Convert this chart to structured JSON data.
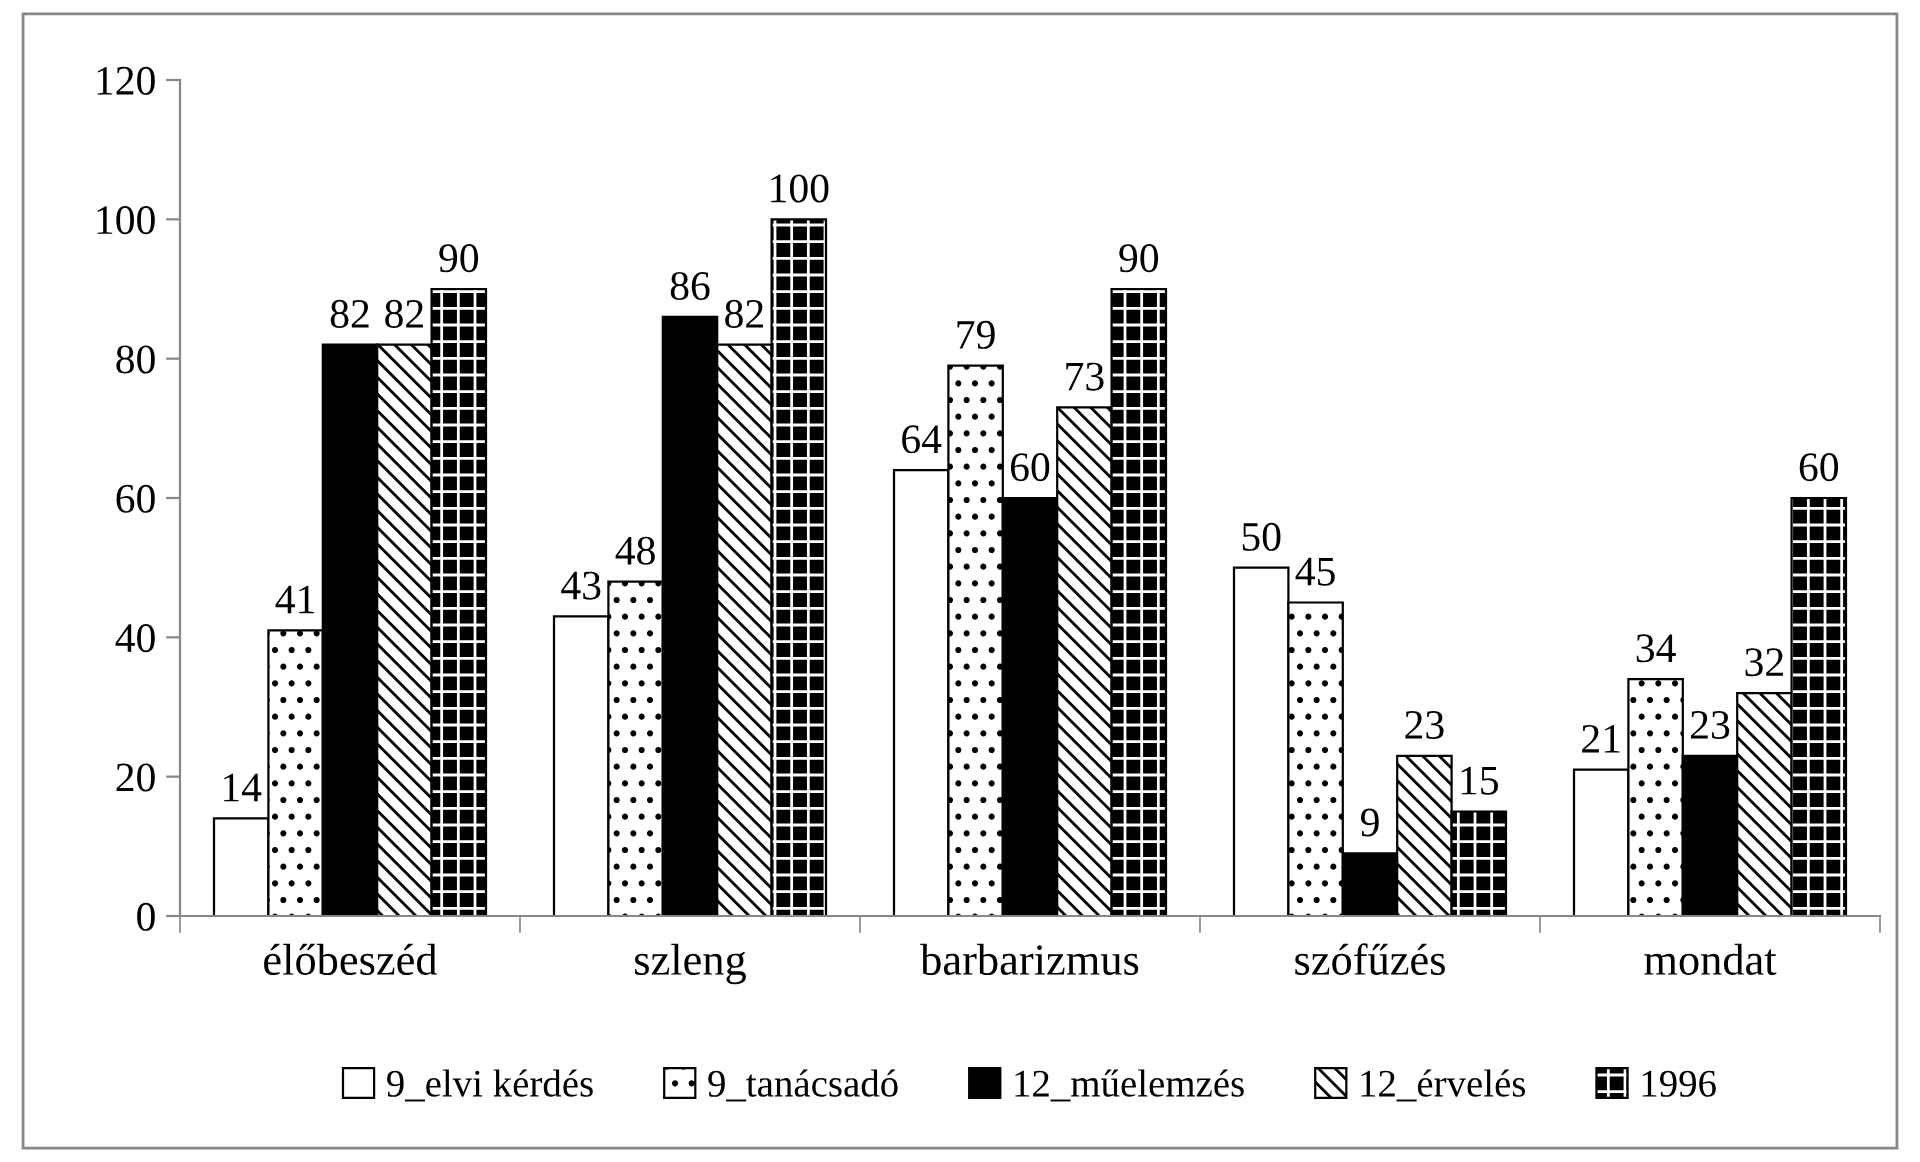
{
  "chart_data": {
    "type": "bar",
    "categories": [
      "élőbeszéd",
      "szleng",
      "barbarizmus",
      "szófűzés",
      "mondat"
    ],
    "series": [
      {
        "name": "9_elvi kérdés",
        "color": "#ffffff",
        "values": [
          14,
          43,
          64,
          50,
          21
        ]
      },
      {
        "name": "9_tanácsadó",
        "color": "#000000",
        "values": [
          41,
          48,
          79,
          45,
          34
        ]
      },
      {
        "name": "12_műelemzés",
        "color": "#000000",
        "values": [
          82,
          86,
          60,
          9,
          23
        ]
      },
      {
        "name": "12_érvelés",
        "color": "#000000",
        "values": [
          82,
          82,
          73,
          23,
          32
        ]
      },
      {
        "name": "1996",
        "color": "#000000",
        "values": [
          90,
          100,
          90,
          15,
          60
        ]
      }
    ],
    "ylim": [
      0,
      120
    ],
    "yticks": [
      0,
      20,
      40,
      60,
      80,
      100,
      120
    ],
    "data_labels": true,
    "legend": "bottom",
    "grid": false
  }
}
